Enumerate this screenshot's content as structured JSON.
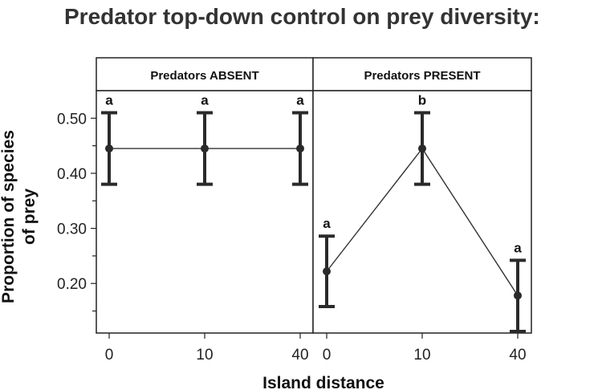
{
  "chart_data": {
    "type": "line",
    "title": "Predator top-down control on prey diversity:",
    "xlabel": "Island distance",
    "ylabel": [
      "Proportion of species",
      "of prey"
    ],
    "ylim": [
      0.11,
      0.55
    ],
    "yticks": [
      0.2,
      0.3,
      0.4,
      0.5
    ],
    "ytick_labels": [
      "0.20",
      "0.30",
      "0.40",
      "0.50"
    ],
    "yminor_ticks": [
      0.15,
      0.25,
      0.35,
      0.45
    ],
    "categories": [
      "0",
      "10",
      "40"
    ],
    "grid": false,
    "panels": [
      {
        "name": "Predators ABSENT",
        "points": [
          {
            "x": "0",
            "y": 0.445,
            "lower": 0.38,
            "upper": 0.51,
            "label": "a"
          },
          {
            "x": "10",
            "y": 0.445,
            "lower": 0.38,
            "upper": 0.51,
            "label": "a"
          },
          {
            "x": "40",
            "y": 0.445,
            "lower": 0.38,
            "upper": 0.51,
            "label": "a"
          }
        ]
      },
      {
        "name": "Predators PRESENT",
        "points": [
          {
            "x": "0",
            "y": 0.222,
            "lower": 0.158,
            "upper": 0.286,
            "label": "a"
          },
          {
            "x": "10",
            "y": 0.445,
            "lower": 0.38,
            "upper": 0.51,
            "label": "b"
          },
          {
            "x": "40",
            "y": 0.178,
            "lower": 0.113,
            "upper": 0.242,
            "label": "a"
          }
        ]
      }
    ],
    "colors": {
      "line": "#333333",
      "error_bar": "#2a2a2a",
      "point": "#2a2a2a",
      "frame": "#222222"
    }
  }
}
